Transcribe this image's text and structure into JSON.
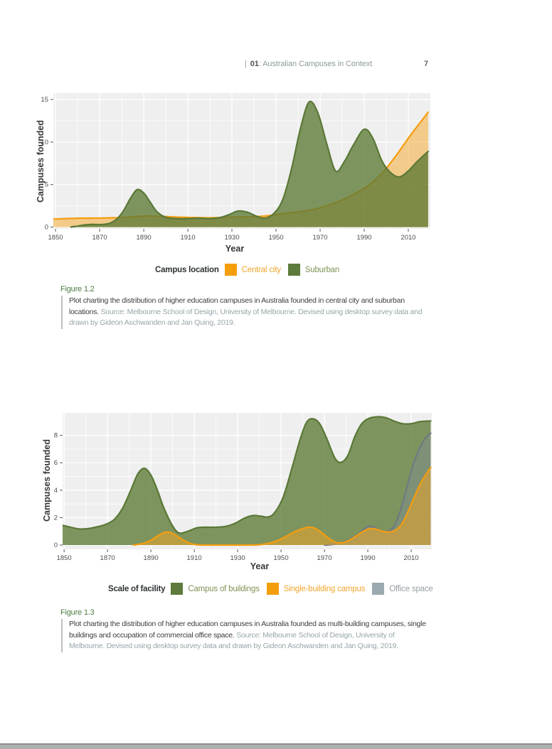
{
  "header": {
    "divider": "|",
    "chapter": "01",
    "title": ": Australian Campuses in Context",
    "page_number": "7"
  },
  "chart_data": [
    {
      "type": "area",
      "title": "",
      "xlabel": "Year",
      "ylabel": "Campuses founded",
      "xlim": [
        1849,
        2020
      ],
      "ylim": [
        -0.2,
        15.75
      ],
      "x_ticks": [
        1850,
        1870,
        1890,
        1910,
        1930,
        1950,
        1970,
        1990,
        2010
      ],
      "y_ticks": [
        0,
        5,
        10,
        15
      ],
      "x_minor": [
        1860,
        1880,
        1900,
        1920,
        1940,
        1960,
        1980,
        2000
      ],
      "y_minor": [
        2.5,
        7.5,
        12.5
      ],
      "grid": true,
      "panel_bg": "#efefef",
      "legend": {
        "position": "bottom",
        "title": "Campus location",
        "items": [
          {
            "label": "Central city",
            "swatch": "#F49E0D",
            "text_color": "#F2A62E"
          },
          {
            "label": "Suburban",
            "swatch": "#5E7A3D",
            "text_color": "#7D9355"
          }
        ]
      },
      "series": [
        {
          "name": "Central city",
          "stroke": "#F59D0E",
          "fill": "#F5A623",
          "fill_opacity": 0.5,
          "x": [
            1849,
            1855,
            1861,
            1867,
            1873,
            1879,
            1885,
            1891,
            1897,
            1903,
            1909,
            1915,
            1921,
            1927,
            1933,
            1939,
            1945,
            1951,
            1957,
            1963,
            1969,
            1975,
            1981,
            1987,
            1993,
            1999,
            2005,
            2011,
            2019
          ],
          "values": [
            0.95,
            1.0,
            1.05,
            1.05,
            1.08,
            1.12,
            1.22,
            1.3,
            1.28,
            1.2,
            1.15,
            1.12,
            1.1,
            1.15,
            1.2,
            1.22,
            1.3,
            1.5,
            1.7,
            1.9,
            2.2,
            2.7,
            3.3,
            4.1,
            5.1,
            6.6,
            8.6,
            10.8,
            13.5
          ]
        },
        {
          "name": "Suburban",
          "stroke": "#5A7836",
          "fill": "#5D7A35",
          "fill_opacity": 0.78,
          "x": [
            1857,
            1860,
            1863,
            1866,
            1869,
            1872,
            1875,
            1878,
            1881,
            1884,
            1887,
            1890,
            1893,
            1896,
            1900,
            1905,
            1910,
            1915,
            1920,
            1925,
            1929,
            1933,
            1937,
            1941,
            1945,
            1949,
            1953,
            1957,
            1961,
            1965,
            1969,
            1973,
            1977,
            1981,
            1985,
            1990,
            1994,
            1998,
            2002,
            2006,
            2010,
            2014,
            2019
          ],
          "values": [
            0.02,
            0.12,
            0.25,
            0.32,
            0.3,
            0.33,
            0.5,
            1.0,
            2.0,
            3.4,
            4.4,
            4.0,
            2.9,
            1.8,
            1.15,
            1.0,
            1.0,
            1.05,
            1.0,
            1.15,
            1.5,
            1.9,
            1.75,
            1.3,
            1.05,
            1.6,
            3.2,
            6.8,
            11.5,
            14.7,
            13.4,
            9.8,
            6.6,
            7.7,
            9.6,
            11.5,
            10.4,
            7.8,
            6.4,
            5.9,
            6.6,
            7.7,
            8.9
          ]
        }
      ]
    },
    {
      "type": "area",
      "title": "",
      "xlabel": "Year",
      "ylabel": "Campuses founded",
      "xlim": [
        1849.3,
        2019.5
      ],
      "ylim": [
        -0.31,
        9.64
      ],
      "x_ticks": [
        1850,
        1870,
        1890,
        1910,
        1930,
        1950,
        1970,
        1990,
        2010
      ],
      "y_ticks": [
        0,
        2,
        4,
        6,
        8
      ],
      "x_minor": [
        1860,
        1880,
        1900,
        1920,
        1940,
        1960,
        1980,
        2000
      ],
      "y_minor": [
        1,
        3,
        5,
        7
      ],
      "grid": true,
      "panel_bg": "#efefef",
      "legend": {
        "position": "bottom",
        "title": "Scale of facility",
        "items": [
          {
            "label": "Campus of buildings",
            "swatch": "#5E7A3D",
            "text_color": "#7D9355"
          },
          {
            "label": "Single-building campus",
            "swatch": "#F49E0D",
            "text_color": "#F2A62E"
          },
          {
            "label": "Office space",
            "swatch": "#9AA9AE",
            "text_color": "#95A0A4"
          }
        ]
      },
      "series": [
        {
          "name": "Campus of buildings",
          "stroke": "#5A7836",
          "fill": "#5D7A35",
          "fill_opacity": 0.78,
          "x": [
            1849,
            1853,
            1857,
            1861,
            1865,
            1869,
            1873,
            1877,
            1881,
            1884,
            1887,
            1890,
            1893,
            1896,
            1900,
            1903,
            1907,
            1911,
            1915,
            1920,
            1925,
            1929,
            1933,
            1937,
            1941,
            1944,
            1947,
            1951,
            1955,
            1959,
            1962,
            1965,
            1968,
            1971,
            1975,
            1978,
            1981,
            1984,
            1987,
            1990,
            1994,
            1998,
            2002,
            2006,
            2010,
            2014,
            2019
          ],
          "values": [
            1.45,
            1.3,
            1.17,
            1.2,
            1.32,
            1.5,
            1.85,
            2.7,
            4.1,
            5.2,
            5.6,
            5.1,
            4.0,
            2.7,
            1.4,
            0.88,
            1.0,
            1.25,
            1.3,
            1.3,
            1.38,
            1.6,
            1.95,
            2.15,
            2.1,
            2.05,
            2.35,
            3.5,
            5.6,
            7.8,
            9.0,
            9.2,
            8.8,
            7.8,
            6.3,
            6.05,
            6.6,
            7.9,
            8.8,
            9.2,
            9.35,
            9.3,
            9.05,
            8.85,
            8.85,
            9.0,
            9.05
          ]
        },
        {
          "name": "Office space",
          "stroke": "#6E7B82",
          "fill": "#7E8C92",
          "fill_opacity": 0.45,
          "x": [
            1970,
            1974,
            1978,
            1982,
            1986,
            1990,
            1993,
            1996,
            1999,
            2002,
            2005,
            2008,
            2011,
            2014,
            2017,
            2019
          ],
          "values": [
            0,
            0.05,
            0.18,
            0.45,
            0.85,
            1.35,
            1.3,
            1.05,
            1.0,
            1.35,
            2.5,
            4.2,
            5.9,
            7.1,
            7.9,
            8.15
          ]
        },
        {
          "name": "Single-building campus",
          "stroke": "#F59D0E",
          "fill": "#F5A623",
          "fill_opacity": 0.5,
          "x": [
            1882,
            1886,
            1890,
            1894,
            1897,
            1900,
            1904,
            1908,
            1912,
            1920,
            1930,
            1940,
            1944,
            1948,
            1952,
            1956,
            1960,
            1963,
            1966,
            1970,
            1973,
            1976,
            1979,
            1982,
            1985,
            1988,
            1991,
            1994,
            1997,
            2000,
            2003,
            2006,
            2009,
            2012,
            2015,
            2019
          ],
          "values": [
            0,
            0.1,
            0.35,
            0.75,
            0.95,
            0.85,
            0.45,
            0.12,
            0.01,
            0,
            0,
            0.02,
            0.12,
            0.3,
            0.6,
            0.95,
            1.2,
            1.3,
            1.2,
            0.75,
            0.38,
            0.16,
            0.2,
            0.4,
            0.7,
            1.0,
            1.2,
            1.15,
            1.0,
            0.95,
            1.1,
            1.6,
            2.6,
            3.7,
            4.7,
            5.65
          ]
        }
      ]
    }
  ],
  "figures": [
    {
      "label": "Figure 1.2",
      "text": "Plot charting the distribution of higher education campuses in Australia founded in central city and suburban locations.",
      "source": " Source: Melbourne School of Design, University of Melbourne. Devised using desktop survey data and drawn by Gideon Aschwanden and Jan Quing, 2019."
    },
    {
      "label": "Figure 1.3",
      "text": "Plot charting the distribution of higher education campuses in Australia founded as multi-building campuses, single buildings and occupation of commercial office space.",
      "source": " Source: Melbourne School of Design, University of Melbourne. Devised using desktop survey data and drawn by Gideon Aschwanden and Jan Quing, 2019."
    }
  ]
}
